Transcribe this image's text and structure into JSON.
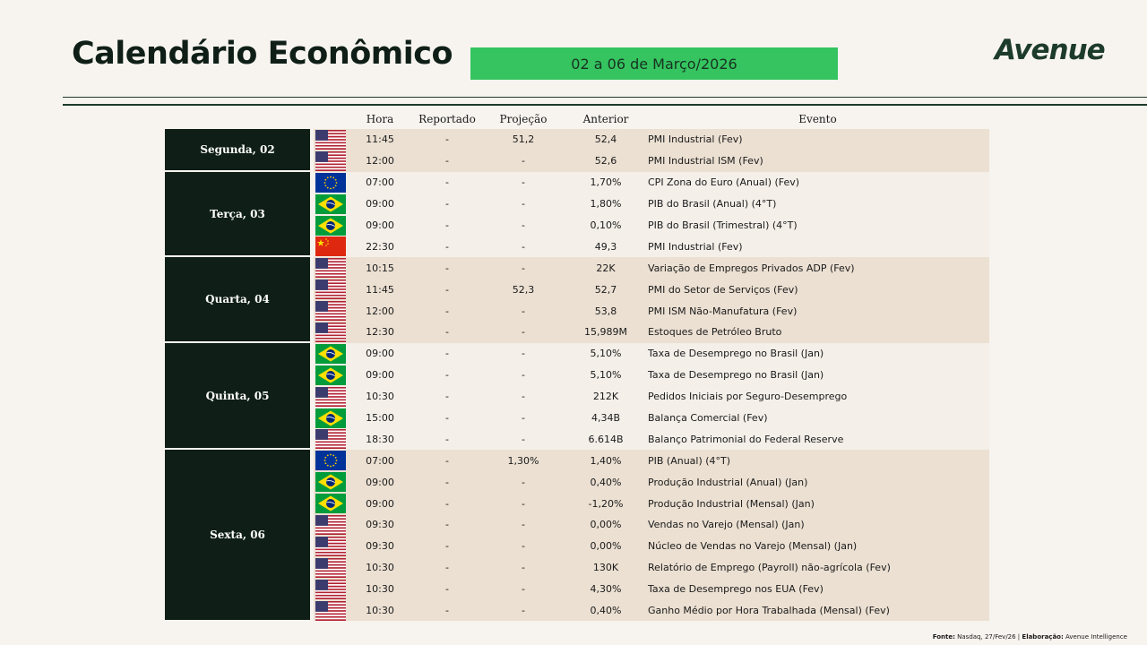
{
  "header": {
    "title": "Calendário Econômico",
    "date_range": "02 a 06 de Março/2026",
    "logo_text": "Avenue"
  },
  "columns": {
    "hora": "Hora",
    "reportado": "Reportado",
    "projecao": "Projeção",
    "anterior": "Anterior",
    "evento": "Evento"
  },
  "days": [
    {
      "label": "Segunda, 02",
      "rows": 2
    },
    {
      "label": "Terça, 03",
      "rows": 4
    },
    {
      "label": "Quarta, 04",
      "rows": 4
    },
    {
      "label": "Quinta, 05",
      "rows": 5
    },
    {
      "label": "Sexta, 06",
      "rows": 8
    }
  ],
  "rows": [
    {
      "flag": "us-flag-icon",
      "hora": "11:45",
      "reportado": "-",
      "projecao": "51,2",
      "anterior": "52,4",
      "evento": "PMI Industrial (Fev)"
    },
    {
      "flag": "us-flag-icon",
      "hora": "12:00",
      "reportado": "-",
      "projecao": "-",
      "anterior": "52,6",
      "evento": "PMI Industrial ISM (Fev)"
    },
    {
      "flag": "eu-flag-icon",
      "hora": "07:00",
      "reportado": "-",
      "projecao": "-",
      "anterior": "1,70%",
      "evento": "CPI Zona do Euro (Anual) (Fev)"
    },
    {
      "flag": "br-flag-icon",
      "hora": "09:00",
      "reportado": "-",
      "projecao": "-",
      "anterior": "1,80%",
      "evento": "PIB do Brasil (Anual) (4°T)"
    },
    {
      "flag": "br-flag-icon",
      "hora": "09:00",
      "reportado": "-",
      "projecao": "-",
      "anterior": "0,10%",
      "evento": "PIB do Brasil (Trimestral) (4°T)"
    },
    {
      "flag": "cn-flag-icon",
      "hora": "22:30",
      "reportado": "-",
      "projecao": "-",
      "anterior": "49,3",
      "evento": "PMI Industrial (Fev)"
    },
    {
      "flag": "us-flag-icon",
      "hora": "10:15",
      "reportado": "-",
      "projecao": "-",
      "anterior": "22K",
      "evento": "Variação de Empregos Privados ADP (Fev)"
    },
    {
      "flag": "us-flag-icon",
      "hora": "11:45",
      "reportado": "-",
      "projecao": "52,3",
      "anterior": "52,7",
      "evento": "PMI do Setor de Serviços (Fev)"
    },
    {
      "flag": "us-flag-icon",
      "hora": "12:00",
      "reportado": "-",
      "projecao": "-",
      "anterior": "53,8",
      "evento": "PMI ISM Não-Manufatura (Fev)"
    },
    {
      "flag": "us-flag-icon",
      "hora": "12:30",
      "reportado": "-",
      "projecao": "-",
      "anterior": "15,989M",
      "evento": "Estoques de Petróleo Bruto"
    },
    {
      "flag": "br-flag-icon",
      "hora": "09:00",
      "reportado": "-",
      "projecao": "-",
      "anterior": "5,10%",
      "evento": "Taxa de Desemprego no Brasil (Jan)"
    },
    {
      "flag": "br-flag-icon",
      "hora": "09:00",
      "reportado": "-",
      "projecao": "-",
      "anterior": "5,10%",
      "evento": "Taxa de Desemprego no Brasil (Jan)"
    },
    {
      "flag": "us-flag-icon",
      "hora": "10:30",
      "reportado": "-",
      "projecao": "-",
      "anterior": "212K",
      "evento": "Pedidos Iniciais por Seguro-Desemprego"
    },
    {
      "flag": "br-flag-icon",
      "hora": "15:00",
      "reportado": "-",
      "projecao": "-",
      "anterior": "4,34B",
      "evento": "Balança Comercial (Fev)"
    },
    {
      "flag": "us-flag-icon",
      "hora": "18:30",
      "reportado": "-",
      "projecao": "-",
      "anterior": "6.614B",
      "evento": "Balanço Patrimonial do Federal Reserve"
    },
    {
      "flag": "eu-flag-icon",
      "hora": "07:00",
      "reportado": "-",
      "projecao": "1,30%",
      "anterior": "1,40%",
      "evento": "PIB (Anual) (4°T)"
    },
    {
      "flag": "br-flag-icon",
      "hora": "09:00",
      "reportado": "-",
      "projecao": "-",
      "anterior": "0,40%",
      "evento": "Produção Industrial (Anual) (Jan)"
    },
    {
      "flag": "br-flag-icon",
      "hora": "09:00",
      "reportado": "-",
      "projecao": "-",
      "anterior": "-1,20%",
      "evento": "Produção Industrial (Mensal) (Jan)"
    },
    {
      "flag": "us-flag-icon",
      "hora": "09:30",
      "reportado": "-",
      "projecao": "-",
      "anterior": "0,00%",
      "evento": "Vendas no Varejo (Mensal) (Jan)"
    },
    {
      "flag": "us-flag-icon",
      "hora": "09:30",
      "reportado": "-",
      "projecao": "-",
      "anterior": "0,00%",
      "evento": "Núcleo de Vendas no Varejo (Mensal) (Jan)"
    },
    {
      "flag": "us-flag-icon",
      "hora": "10:30",
      "reportado": "-",
      "projecao": "-",
      "anterior": "130K",
      "evento": "Relatório de Emprego (Payroll) não-agrícola (Fev)"
    },
    {
      "flag": "us-flag-icon",
      "hora": "10:30",
      "reportado": "-",
      "projecao": "-",
      "anterior": "4,30%",
      "evento": "Taxa de Desemprego nos EUA (Fev)"
    },
    {
      "flag": "us-flag-icon",
      "hora": "10:30",
      "reportado": "-",
      "projecao": "-",
      "anterior": "0,40%",
      "evento": "Ganho Médio por Hora Trabalhada (Mensal) (Fev)"
    }
  ],
  "footer": {
    "fonte_label": "Fonte:",
    "fonte_value": "Nasdaq, 27/Fev/26 |",
    "elaboracao_label": "Elaboração:",
    "elaboracao_value": "Avenue Intelligence"
  },
  "colors": {
    "brand_dark": "#0f1f17",
    "date_box": "#35c45f",
    "row_shade": "#ebe0d2",
    "row_light": "#f4efe9",
    "background": "#f7f4ef"
  }
}
